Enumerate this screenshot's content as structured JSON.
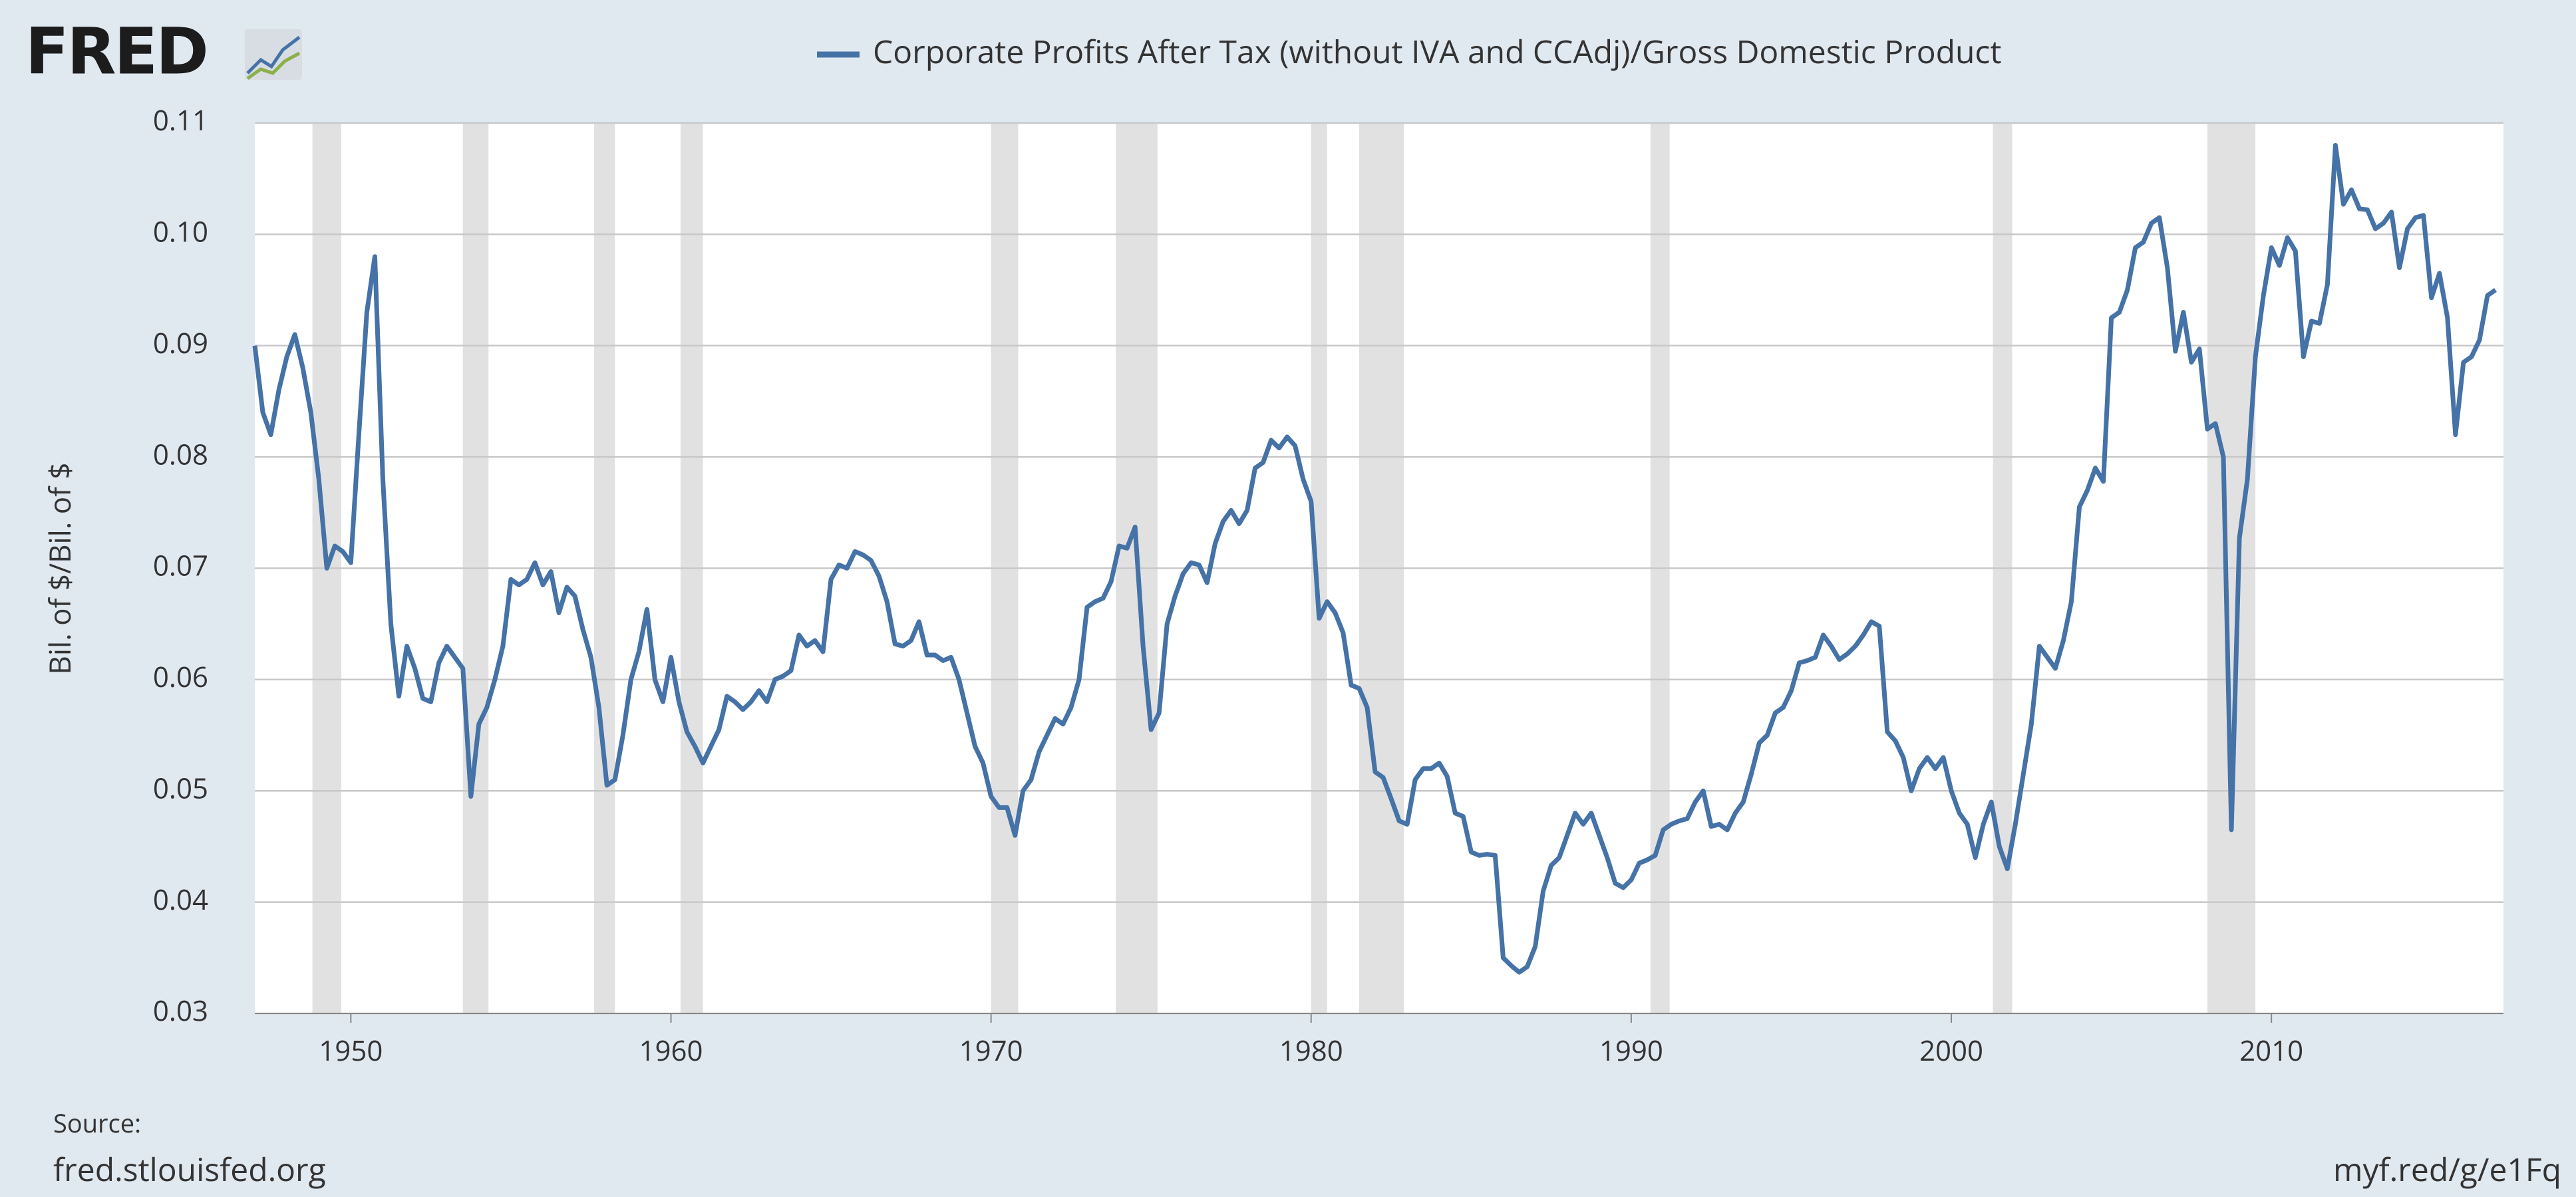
{
  "chart_data": {
    "type": "line",
    "logo": "FRED",
    "y_label": "Bil. of $/Bil. of $",
    "source_label": "Source:",
    "source": "fred.stlouisfed.org",
    "short_url": "myf.red/g/e1Fq",
    "xlim": [
      1947,
      2017.25
    ],
    "xticks": [
      1950,
      1960,
      1970,
      1980,
      1990,
      2000,
      2010
    ],
    "ylim": [
      0.03,
      0.11
    ],
    "yticks": [
      0.03,
      0.04,
      0.05,
      0.06,
      0.07,
      0.08,
      0.09,
      {
        "value": 0.1,
        "label": "0.10"
      },
      0.11
    ],
    "grid": true,
    "recessions": [
      [
        1948.8,
        1949.7
      ],
      [
        1953.5,
        1954.3
      ],
      [
        1957.6,
        1958.25
      ],
      [
        1960.3,
        1961.0
      ],
      [
        1970.0,
        1970.85
      ],
      [
        1973.9,
        1975.2
      ],
      [
        1980.0,
        1980.5
      ],
      [
        1981.5,
        1982.9
      ],
      [
        1990.6,
        1991.2
      ],
      [
        2001.3,
        2001.9
      ],
      [
        2008.0,
        2009.5
      ]
    ],
    "x": [
      1947,
      1947.25,
      1947.5,
      1947.75,
      1948,
      1948.25,
      1948.5,
      1948.75,
      1949,
      1949.25,
      1949.5,
      1949.75,
      1950,
      1950.25,
      1950.5,
      1950.75,
      1951,
      1951.25,
      1951.5,
      1951.75,
      1952,
      1952.25,
      1952.5,
      1952.75,
      1953,
      1953.25,
      1953.5,
      1953.75,
      1954,
      1954.25,
      1954.5,
      1954.75,
      1955,
      1955.25,
      1955.5,
      1955.75,
      1956,
      1956.25,
      1956.5,
      1956.75,
      1957,
      1957.25,
      1957.5,
      1957.75,
      1958,
      1958.25,
      1958.5,
      1958.75,
      1959,
      1959.25,
      1959.5,
      1959.75,
      1960,
      1960.25,
      1960.5,
      1960.75,
      1961,
      1961.25,
      1961.5,
      1961.75,
      1962,
      1962.25,
      1962.5,
      1962.75,
      1963,
      1963.25,
      1963.5,
      1963.75,
      1964,
      1964.25,
      1964.5,
      1964.75,
      1965,
      1965.25,
      1965.5,
      1965.75,
      1966,
      1966.25,
      1966.5,
      1966.75,
      1967,
      1967.25,
      1967.5,
      1967.75,
      1968,
      1968.25,
      1968.5,
      1968.75,
      1969,
      1969.25,
      1969.5,
      1969.75,
      1970,
      1970.25,
      1970.5,
      1970.75,
      1971,
      1971.25,
      1971.5,
      1971.75,
      1972,
      1972.25,
      1972.5,
      1972.75,
      1973,
      1973.25,
      1973.5,
      1973.75,
      1974,
      1974.25,
      1974.5,
      1974.75,
      1975,
      1975.25,
      1975.5,
      1975.75,
      1976,
      1976.25,
      1976.5,
      1976.75,
      1977,
      1977.25,
      1977.5,
      1977.75,
      1978,
      1978.25,
      1978.5,
      1978.75,
      1979,
      1979.25,
      1979.5,
      1979.75,
      1980,
      1980.25,
      1980.5,
      1980.75,
      1981,
      1981.25,
      1981.5,
      1981.75,
      1982,
      1982.25,
      1982.5,
      1982.75,
      1983,
      1983.25,
      1983.5,
      1983.75,
      1984,
      1984.25,
      1984.5,
      1984.75,
      1985,
      1985.25,
      1985.5,
      1985.75,
      1986,
      1986.25,
      1986.5,
      1986.75,
      1987,
      1987.25,
      1987.5,
      1987.75,
      1988,
      1988.25,
      1988.5,
      1988.75,
      1989,
      1989.25,
      1989.5,
      1989.75,
      1990,
      1990.25,
      1990.5,
      1990.75,
      1991,
      1991.25,
      1991.5,
      1991.75,
      1992,
      1992.25,
      1992.5,
      1992.75,
      1993,
      1993.25,
      1993.5,
      1993.75,
      1994,
      1994.25,
      1994.5,
      1994.75,
      1995,
      1995.25,
      1995.5,
      1995.75,
      1996,
      1996.25,
      1996.5,
      1996.75,
      1997,
      1997.25,
      1997.5,
      1997.75,
      1998,
      1998.25,
      1998.5,
      1998.75,
      1999,
      1999.25,
      1999.5,
      1999.75,
      2000,
      2000.25,
      2000.5,
      2000.75,
      2001,
      2001.25,
      2001.5,
      2001.75,
      2002,
      2002.25,
      2002.5,
      2002.75,
      2003,
      2003.25,
      2003.5,
      2003.75,
      2004,
      2004.25,
      2004.5,
      2004.75,
      2005,
      2005.25,
      2005.5,
      2005.75,
      2006,
      2006.25,
      2006.5,
      2006.75,
      2007,
      2007.25,
      2007.5,
      2007.75,
      2008,
      2008.25,
      2008.5,
      2008.75,
      2009,
      2009.25,
      2009.5,
      2009.75,
      2010,
      2010.25,
      2010.5,
      2010.75,
      2011,
      2011.25,
      2011.5,
      2011.75,
      2012,
      2012.25,
      2012.5,
      2012.75,
      2013,
      2013.25,
      2013.5,
      2013.75,
      2014,
      2014.25,
      2014.5,
      2014.75,
      2015,
      2015.25,
      2015.5,
      2015.75,
      2016,
      2016.25,
      2016.5,
      2016.75,
      2017
    ],
    "series": [
      {
        "name": "Corporate Profits After Tax (without IVA and CCAdj)/Gross Domestic Product",
        "color": "#4572a7",
        "values": [
          0.09,
          0.084,
          0.082,
          0.086,
          0.089,
          0.091,
          0.088,
          0.084,
          0.078,
          0.07,
          0.072,
          0.0715,
          0.0705,
          0.082,
          0.093,
          0.098,
          0.078,
          0.065,
          0.0585,
          0.063,
          0.061,
          0.0583,
          0.058,
          0.0615,
          0.063,
          0.062,
          0.061,
          0.0495,
          0.056,
          0.0575,
          0.06,
          0.063,
          0.069,
          0.0685,
          0.069,
          0.0705,
          0.0685,
          0.0697,
          0.066,
          0.0683,
          0.0675,
          0.0645,
          0.062,
          0.0575,
          0.0505,
          0.051,
          0.055,
          0.06,
          0.0625,
          0.0663,
          0.06,
          0.058,
          0.062,
          0.058,
          0.0553,
          0.054,
          0.0525,
          0.054,
          0.0555,
          0.0585,
          0.058,
          0.0573,
          0.058,
          0.059,
          0.058,
          0.06,
          0.0603,
          0.0608,
          0.064,
          0.063,
          0.0635,
          0.0625,
          0.069,
          0.0703,
          0.07,
          0.0715,
          0.0712,
          0.0707,
          0.0693,
          0.067,
          0.0632,
          0.063,
          0.0635,
          0.0652,
          0.0622,
          0.0622,
          0.0617,
          0.062,
          0.06,
          0.057,
          0.054,
          0.0525,
          0.0495,
          0.0485,
          0.0485,
          0.046,
          0.05,
          0.051,
          0.0535,
          0.055,
          0.0565,
          0.056,
          0.0575,
          0.06,
          0.0665,
          0.067,
          0.0673,
          0.0688,
          0.072,
          0.0718,
          0.0737,
          0.063,
          0.0555,
          0.057,
          0.065,
          0.0675,
          0.0695,
          0.0705,
          0.0703,
          0.0687,
          0.0722,
          0.0742,
          0.0752,
          0.074,
          0.0752,
          0.079,
          0.0795,
          0.0815,
          0.0808,
          0.0818,
          0.081,
          0.078,
          0.076,
          0.0655,
          0.067,
          0.066,
          0.0642,
          0.0595,
          0.0592,
          0.0575,
          0.0517,
          0.0512,
          0.0493,
          0.0473,
          0.047,
          0.051,
          0.052,
          0.052,
          0.0525,
          0.0513,
          0.048,
          0.0477,
          0.0445,
          0.0442,
          0.0443,
          0.0442,
          0.035,
          0.0343,
          0.0337,
          0.0342,
          0.036,
          0.041,
          0.0433,
          0.044,
          0.046,
          0.048,
          0.047,
          0.048,
          0.046,
          0.044,
          0.0417,
          0.0413,
          0.042,
          0.0435,
          0.0438,
          0.0442,
          0.0465,
          0.047,
          0.0473,
          0.0475,
          0.049,
          0.05,
          0.0468,
          0.047,
          0.0465,
          0.048,
          0.049,
          0.0515,
          0.0543,
          0.055,
          0.057,
          0.0575,
          0.059,
          0.0615,
          0.0617,
          0.062,
          0.064,
          0.063,
          0.0618,
          0.0623,
          0.063,
          0.064,
          0.0652,
          0.0648,
          0.0553,
          0.0545,
          0.053,
          0.05,
          0.052,
          0.053,
          0.052,
          0.053,
          0.05,
          0.048,
          0.047,
          0.044,
          0.047,
          0.049,
          0.045,
          0.043,
          0.047,
          0.0515,
          0.056,
          0.063,
          0.062,
          0.061,
          0.0635,
          0.067,
          0.0755,
          0.077,
          0.079,
          0.0778,
          0.0925,
          0.093,
          0.095,
          0.0988,
          0.0993,
          0.101,
          0.1015,
          0.097,
          0.0895,
          0.093,
          0.0885,
          0.0897,
          0.0825,
          0.083,
          0.08,
          0.0465,
          0.0727,
          0.078,
          0.089,
          0.0945,
          0.0988,
          0.0972,
          0.0997,
          0.0985,
          0.089,
          0.0922,
          0.092,
          0.0955,
          0.108,
          0.1027,
          0.104,
          0.1023,
          0.1022,
          0.1005,
          0.101,
          0.102,
          0.097,
          0.1005,
          0.1015,
          0.1017,
          0.0943,
          0.0965,
          0.0925,
          0.082,
          0.0885,
          0.089,
          0.0905,
          0.0945,
          0.095
        ]
      }
    ]
  }
}
